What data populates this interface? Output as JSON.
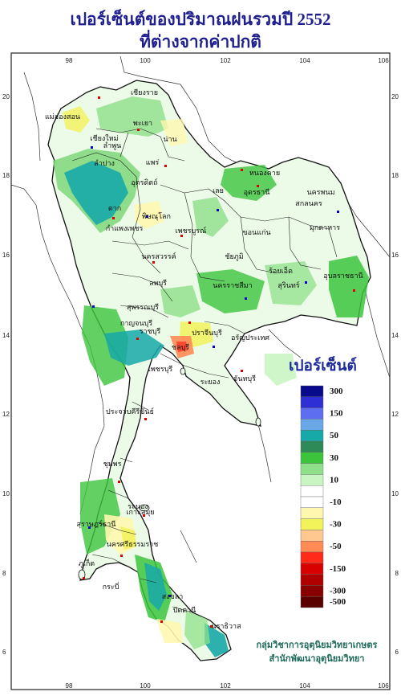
{
  "title": {
    "line1": "เปอร์เซ็นต์ของปริมาณฝนรวมปี 2552",
    "line2": "ที่ต่างจากค่าปกติ"
  },
  "map": {
    "lon_ticks": [
      "98",
      "100",
      "102",
      "104",
      "106"
    ],
    "lat_ticks": [
      "20",
      "18",
      "16",
      "14",
      "12",
      "10",
      "8",
      "6"
    ],
    "provinces": [
      "เชียงราย",
      "แม่ฮ่องสอน",
      "เชียงใหม่",
      "ลำพูน",
      "น่าน",
      "พะเยา",
      "แพร่",
      "ลำปาง",
      "อุตรดิตถ์",
      "ตาก",
      "พิษณุโลก",
      "กำแพงเพชร",
      "เพชรบูรณ์",
      "นครสวรรค์",
      "หนองคาย",
      "อุดรธานี",
      "นครพนม",
      "สกลนคร",
      "มุกดาหาร",
      "เลย",
      "ขอนแก่น",
      "ชัยภูมิ",
      "อุบลราชธานี",
      "ร้อยเอ็ด",
      "ลพบุรี",
      "สุพรรณบุรี",
      "กาญจนบุรี",
      "ราชบุรี",
      "นครราชสีมา",
      "สุรินทร์",
      "ปราจีนบุรี",
      "ชลบุรี",
      "อรัญประเทศ",
      "ระยอง",
      "จันทบุรี",
      "เพชรบุรี",
      "ประจวบคีรีขันธ์",
      "ชุมพร",
      "ระนอง",
      "สุราษฎร์ธานี",
      "นครศรีธรรมราช",
      "ภูเก็ต",
      "กระบี่",
      "สงขลา",
      "ปัตตานี",
      "นราธิวาส",
      "เกาะสมุย"
    ]
  },
  "legend": {
    "title": "เปอร์เซ็นต์",
    "items": [
      {
        "label": "300",
        "color": "#0a0a8c"
      },
      {
        "label": "",
        "color": "#2f2fd6"
      },
      {
        "label": "150",
        "color": "#5e6ef0"
      },
      {
        "label": "",
        "color": "#6aa7e6"
      },
      {
        "label": "50",
        "color": "#17a8a8"
      },
      {
        "label": "",
        "color": "#2e8b57"
      },
      {
        "label": "30",
        "color": "#3cc43c"
      },
      {
        "label": "",
        "color": "#8fe08a"
      },
      {
        "label": "10",
        "color": "#c9f5c3"
      },
      {
        "label": "",
        "color": "#ffffff"
      },
      {
        "label": "-10",
        "color": "#ffffff"
      },
      {
        "label": "",
        "color": "#fff7b0"
      },
      {
        "label": "-30",
        "color": "#f2f25a"
      },
      {
        "label": "",
        "color": "#ffc890"
      },
      {
        "label": "-50",
        "color": "#ff8a55"
      },
      {
        "label": "",
        "color": "#ff2a1a"
      },
      {
        "label": "-150",
        "color": "#d80000"
      },
      {
        "label": "",
        "color": "#b00000"
      },
      {
        "label": "-300",
        "color": "#8a0000"
      },
      {
        "label": "-500",
        "color": "#5a0000"
      }
    ]
  },
  "credit": {
    "line1": "กลุ่มวิชาการอุตุนิยมวิทยาเกษตร",
    "line2": "สำนักพัฒนาอุตุนิยมวิทยา"
  }
}
